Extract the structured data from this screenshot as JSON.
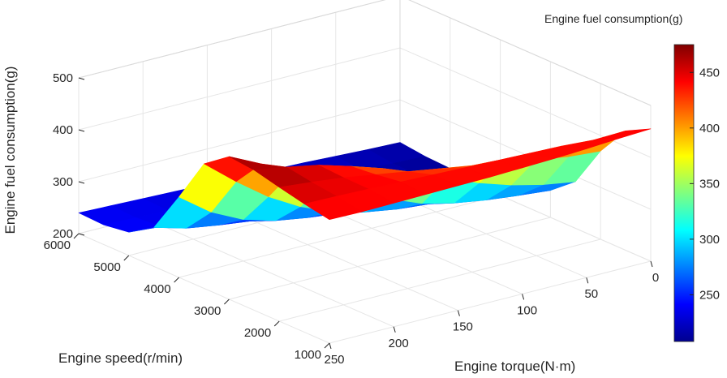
{
  "chart_data": {
    "type": "surface3d",
    "title": "",
    "xlabel": "Engine torque(N·m)",
    "ylabel": "Engine speed(r/min)",
    "zlabel": "Engine fuel consumption(g)",
    "colorbar_title": "Engine fuel consumption(g)",
    "xlim": [
      0,
      250
    ],
    "ylim": [
      1000,
      6000
    ],
    "zlim": [
      200,
      500
    ],
    "x_ticks": [
      0,
      50,
      100,
      150,
      200,
      250
    ],
    "y_ticks": [
      1000,
      2000,
      3000,
      4000,
      5000,
      6000
    ],
    "z_ticks": [
      200,
      300,
      400,
      500
    ],
    "colorbar_ticks": [
      250,
      300,
      350,
      400,
      450
    ],
    "colorbar_range": [
      208,
      475
    ],
    "colormap": [
      "#00008f",
      "#0000ff",
      "#00ffff",
      "#ffff00",
      "#ff0000",
      "#800000"
    ],
    "grid": true,
    "x": [
      0,
      25,
      50,
      75,
      100,
      125,
      150,
      175,
      200,
      225,
      250
    ],
    "y": [
      1000,
      1500,
      2000,
      2500,
      3000,
      3500,
      4000,
      4500,
      5000,
      5500,
      6000
    ],
    "z": [
      [
        455,
        452,
        448,
        445,
        443,
        441,
        440,
        439,
        438,
        437,
        438
      ],
      [
        430,
        428,
        432,
        434,
        436,
        438,
        440,
        442,
        444,
        446,
        447
      ],
      [
        370,
        375,
        385,
        395,
        405,
        415,
        425,
        435,
        445,
        452,
        458
      ],
      [
        290,
        300,
        315,
        335,
        360,
        385,
        410,
        430,
        448,
        460,
        470
      ],
      [
        252,
        258,
        265,
        275,
        290,
        315,
        345,
        380,
        415,
        445,
        475
      ],
      [
        240,
        243,
        247,
        252,
        258,
        268,
        285,
        310,
        345,
        390,
        440
      ],
      [
        225,
        228,
        232,
        236,
        240,
        245,
        252,
        262,
        280,
        310,
        355
      ],
      [
        215,
        218,
        222,
        225,
        228,
        232,
        236,
        240,
        248,
        258,
        275
      ],
      [
        210,
        213,
        217,
        220,
        223,
        226,
        229,
        232,
        236,
        240,
        245
      ],
      [
        212,
        214,
        218,
        221,
        224,
        227,
        230,
        232,
        234,
        236,
        238
      ],
      [
        218,
        220,
        223,
        226,
        228,
        230,
        232,
        234,
        236,
        238,
        240
      ]
    ]
  }
}
